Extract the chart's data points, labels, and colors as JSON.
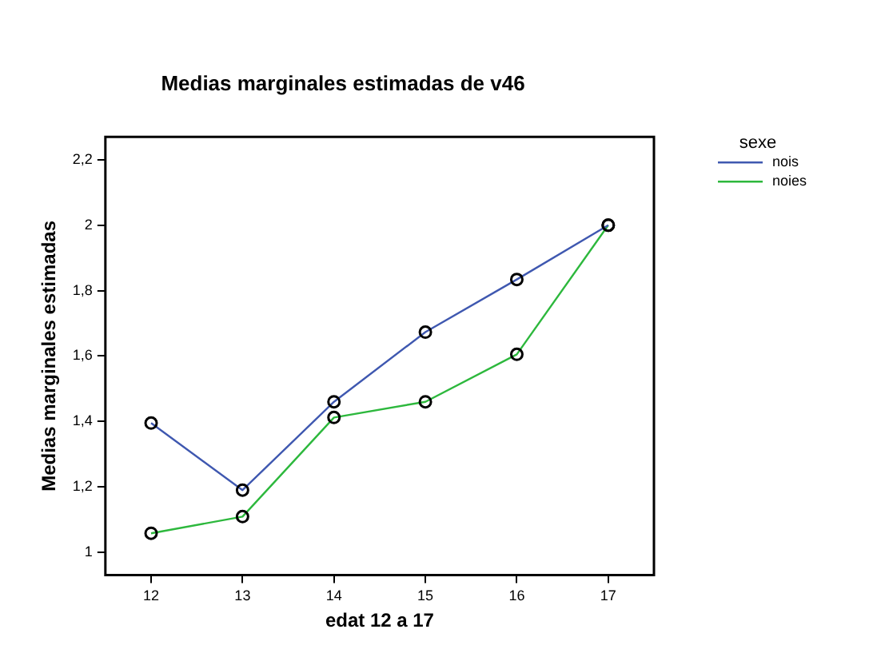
{
  "chart_data": {
    "type": "line",
    "title": "Medias marginales estimadas de v46",
    "xlabel": "edat 12 a 17",
    "ylabel": "Medias marginales estimadas",
    "legend_title": "sexe",
    "categories": [
      "12",
      "13",
      "14",
      "15",
      "16",
      "17"
    ],
    "series": [
      {
        "name": "nois",
        "color": "#3f58b0",
        "values": [
          1.395,
          1.19,
          1.46,
          1.673,
          1.834,
          2.0
        ]
      },
      {
        "name": "noies",
        "color": "#2db83d",
        "values": [
          1.058,
          1.109,
          1.412,
          1.46,
          1.605,
          2.0
        ]
      }
    ],
    "ylim": [
      0.93,
      2.27
    ],
    "yticks": [
      1,
      {
        "value": 1.2,
        "label": "1,2"
      },
      {
        "value": 1.4,
        "label": "1,4"
      },
      {
        "value": 1.6,
        "label": "1,6"
      },
      {
        "value": 1.8,
        "label": "1,8"
      },
      2,
      {
        "value": 2.2,
        "label": "2,2"
      }
    ],
    "grid": false,
    "legend": "right",
    "marker": "circle",
    "line_style": "solid"
  }
}
